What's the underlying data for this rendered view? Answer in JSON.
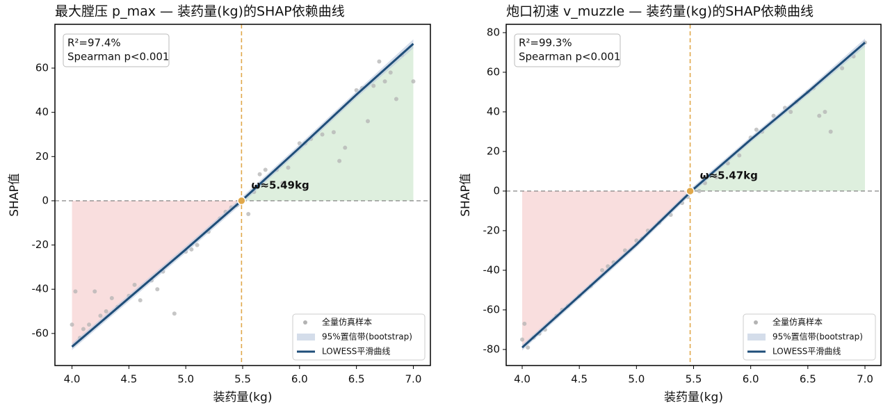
{
  "chart_data": [
    {
      "type": "scatter",
      "title": "最大膛压 p_max — 装药量(kg)的SHAP依赖曲线",
      "x_label": "装药量(kg)",
      "y_label": "SHAP值",
      "stats": [
        "R²=97.4%",
        "Spearman p<0.001"
      ],
      "threshold": {
        "value": 5.49,
        "label": "ω≈5.49kg"
      },
      "threshold_color": "#e0a84a",
      "threshold_text_color": "#b8860b",
      "reference_y": 0,
      "fill_below_color": "#f6cccc",
      "fill_above_color": "#d3ead3",
      "xlim": [
        3.85,
        7.15
      ],
      "ylim": [
        -74.5,
        79.8
      ],
      "xticks": [
        {
          "value": 4,
          "label": "4.0"
        },
        4.5,
        {
          "value": 5,
          "label": "5.0"
        },
        5.5,
        {
          "value": 6,
          "label": "6.0"
        },
        6.5,
        {
          "value": 7,
          "label": "7.0"
        }
      ],
      "yticks": [
        -60,
        -40,
        -20,
        0,
        20,
        40,
        60
      ],
      "legend": "lower right",
      "series": [
        {
          "name": "全量仿真样本",
          "kind": "scatter",
          "color": "#b3b3b3",
          "x": [
            4.0,
            4.03,
            4.07,
            4.1,
            4.15,
            4.2,
            4.25,
            4.3,
            4.35,
            4.4,
            4.5,
            4.55,
            4.6,
            4.7,
            4.75,
            4.8,
            4.9,
            5.0,
            5.05,
            5.1,
            5.2,
            5.3,
            5.35,
            5.4,
            5.45,
            5.5,
            5.55,
            5.6,
            5.65,
            5.7,
            5.8,
            5.85,
            5.9,
            6.0,
            6.05,
            6.1,
            6.2,
            6.3,
            6.35,
            6.4,
            6.5,
            6.55,
            6.6,
            6.65,
            6.7,
            6.75,
            6.8,
            6.85,
            6.9,
            7.0
          ],
          "values": [
            -56,
            -41,
            -62,
            -58,
            -56,
            -41,
            -52,
            -50,
            -44,
            -48,
            -43,
            -38,
            -45,
            -36,
            -40,
            -32,
            -51,
            -23,
            -22,
            -20,
            -14,
            -8,
            -5,
            -3,
            -2,
            0,
            -6,
            4,
            12,
            14,
            14,
            8,
            15,
            26,
            26,
            28,
            30,
            31,
            18,
            24,
            50,
            51,
            36,
            52,
            63,
            54,
            58,
            46,
            66,
            54
          ]
        },
        {
          "name": "95%置信带(bootstrap)",
          "kind": "band",
          "color": "#b7c6dc",
          "x": [
            4.0,
            4.5,
            5.0,
            5.5,
            6.0,
            6.5,
            7.0
          ],
          "lower": [
            -67.5,
            -45.5,
            -23.5,
            -1,
            22.5,
            46.5,
            69
          ],
          "upper": [
            -64.5,
            -42.5,
            -20.5,
            2,
            25.5,
            49.5,
            73
          ]
        },
        {
          "name": "LOWESS平滑曲线",
          "kind": "line",
          "color": "#1f4e79",
          "x": [
            4.0,
            4.5,
            5.0,
            5.5,
            6.0,
            6.5,
            7.0
          ],
          "values": [
            -66,
            -44,
            -22,
            0.5,
            24,
            48,
            71
          ]
        }
      ]
    },
    {
      "type": "scatter",
      "title": "炮口初速 v_muzzle — 装药量(kg)的SHAP依赖曲线",
      "x_label": "装药量(kg)",
      "y_label": "SHAP值",
      "stats": [
        "R²=99.3%",
        "Spearman p<0.001"
      ],
      "threshold": {
        "value": 5.47,
        "label": "ω≈5.47kg"
      },
      "threshold_color": "#e0a84a",
      "threshold_text_color": "#b8860b",
      "reference_y": 0,
      "fill_below_color": "#f6cccc",
      "fill_above_color": "#d3ead3",
      "xlim": [
        3.86,
        7.14
      ],
      "ylim": [
        -88.1,
        84.2
      ],
      "xticks": [
        {
          "value": 4,
          "label": "4.0"
        },
        4.5,
        {
          "value": 5,
          "label": "5.0"
        },
        5.5,
        {
          "value": 6,
          "label": "6.0"
        },
        6.5,
        {
          "value": 7,
          "label": "7.0"
        }
      ],
      "yticks": [
        -80,
        -60,
        -40,
        -20,
        0,
        20,
        40,
        60,
        80
      ],
      "legend": "lower right",
      "series": [
        {
          "name": "全量仿真样本",
          "kind": "scatter",
          "color": "#b3b3b3",
          "x": [
            4.0,
            4.02,
            4.05,
            4.1,
            4.15,
            4.2,
            4.3,
            4.35,
            4.4,
            4.5,
            4.6,
            4.7,
            4.75,
            4.8,
            4.9,
            5.0,
            5.05,
            5.1,
            5.2,
            5.3,
            5.4,
            5.45,
            5.5,
            5.55,
            5.6,
            5.7,
            5.8,
            5.9,
            6.0,
            6.05,
            6.1,
            6.2,
            6.3,
            6.35,
            6.4,
            6.5,
            6.55,
            6.6,
            6.65,
            6.7,
            6.8,
            6.9,
            7.0
          ],
          "values": [
            -75,
            -67,
            -79,
            -74,
            -72,
            -70,
            -63,
            -60,
            -58,
            -53,
            -48,
            -40,
            -38,
            -36,
            -30,
            -25,
            -24,
            -20,
            -16,
            -12,
            -6,
            -3,
            1,
            0,
            4,
            7,
            14,
            18,
            27,
            31,
            30,
            38,
            42,
            40,
            45,
            50,
            52,
            38,
            40,
            30,
            62,
            68,
            75
          ]
        },
        {
          "name": "95%置信带(bootstrap)",
          "kind": "band",
          "color": "#b7c6dc",
          "x": [
            4.0,
            4.5,
            5.0,
            5.5,
            6.0,
            6.5,
            7.0
          ],
          "lower": [
            -80.5,
            -54.5,
            -28.5,
            -0.5,
            24.5,
            48.5,
            73
          ],
          "upper": [
            -77.5,
            -51.5,
            -25.5,
            2.5,
            27.5,
            51.5,
            77
          ]
        },
        {
          "name": "LOWESS平滑曲线",
          "kind": "line",
          "color": "#1f4e79",
          "x": [
            4.0,
            4.5,
            5.0,
            5.5,
            6.0,
            6.5,
            7.0
          ],
          "values": [
            -79,
            -53,
            -27,
            1,
            26,
            50,
            75
          ]
        }
      ]
    }
  ]
}
